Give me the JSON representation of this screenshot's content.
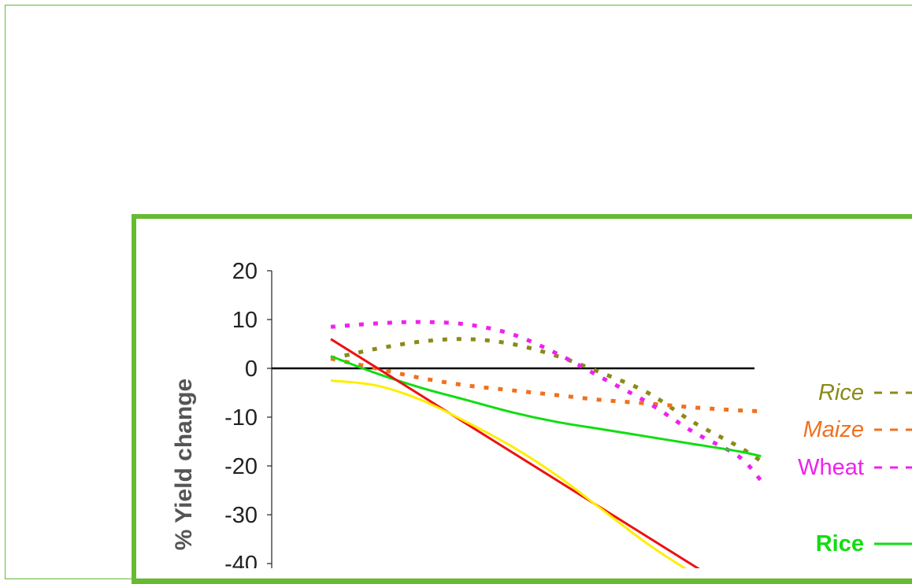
{
  "chart_data": {
    "type": "line",
    "title": "",
    "ylabel": "% Yield change",
    "xlabel": "",
    "ylim": [
      -45,
      20
    ],
    "y_ticks": [
      20,
      10,
      0,
      -10,
      -20,
      -30,
      -40
    ],
    "x_range": [
      0,
      10
    ],
    "series": [
      {
        "name": "Rice",
        "color": "#8a8a1a",
        "style": "dashed",
        "legend_italic": true,
        "legend_bold": false,
        "points": [
          [
            0,
            2
          ],
          [
            0.5,
            3
          ],
          [
            1,
            4
          ],
          [
            2,
            5.5
          ],
          [
            3,
            6
          ],
          [
            4,
            5
          ],
          [
            5,
            2.5
          ],
          [
            6,
            -1
          ],
          [
            7,
            -5
          ],
          [
            8,
            -11
          ],
          [
            9,
            -16
          ],
          [
            9.5,
            -19
          ]
        ]
      },
      {
        "name": "Maize",
        "color": "#f07020",
        "style": "dashed",
        "legend_italic": true,
        "legend_bold": false,
        "points": [
          [
            0,
            2
          ],
          [
            1,
            0
          ],
          [
            2,
            -2
          ],
          [
            3,
            -3.5
          ],
          [
            4,
            -4.5
          ],
          [
            5,
            -5.5
          ],
          [
            6,
            -6.5
          ],
          [
            7,
            -7.2
          ],
          [
            8,
            -8
          ],
          [
            9,
            -8.6
          ],
          [
            9.5,
            -8.8
          ]
        ]
      },
      {
        "name": "Wheat",
        "color": "#ee22ee",
        "style": "dashed",
        "legend_italic": false,
        "legend_bold": false,
        "points": [
          [
            0,
            8.5
          ],
          [
            1,
            9.2
          ],
          [
            2,
            9.5
          ],
          [
            3,
            9
          ],
          [
            4,
            7
          ],
          [
            5,
            3
          ],
          [
            6,
            -2
          ],
          [
            7,
            -7
          ],
          [
            8,
            -13
          ],
          [
            9,
            -18
          ],
          [
            9.5,
            -23
          ]
        ]
      },
      {
        "name": "Rice",
        "color": "#11dd11",
        "style": "solid",
        "legend_italic": false,
        "legend_bold": true,
        "points": [
          [
            0,
            2.5
          ],
          [
            1,
            -1
          ],
          [
            2,
            -4
          ],
          [
            3,
            -6.5
          ],
          [
            4,
            -9
          ],
          [
            5,
            -11
          ],
          [
            6,
            -12.5
          ],
          [
            7,
            -14
          ],
          [
            8,
            -15.5
          ],
          [
            9,
            -17
          ],
          [
            9.5,
            -18
          ]
        ]
      },
      {
        "name": "",
        "color": "#ee1111",
        "style": "solid",
        "points": [
          [
            0,
            6
          ],
          [
            8.8,
            -45
          ]
        ]
      },
      {
        "name": "",
        "color": "#ffee00",
        "style": "solid",
        "points": [
          [
            0,
            -2.5
          ],
          [
            1,
            -3.5
          ],
          [
            2,
            -6.5
          ],
          [
            3,
            -11
          ],
          [
            4,
            -16
          ],
          [
            5,
            -22
          ],
          [
            6,
            -29
          ],
          [
            7,
            -36
          ],
          [
            8,
            -42
          ],
          [
            8.6,
            -45
          ]
        ]
      }
    ],
    "legend_position": "right",
    "zero_line": true
  }
}
